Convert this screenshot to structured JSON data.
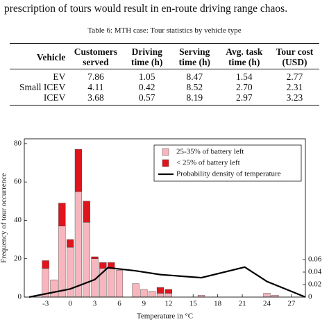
{
  "text_line": "prescription of tours would result in en-route driving range chaos.",
  "table": {
    "caption": "Table 6: MTH case: Tour statistics by vehicle type",
    "header": [
      "Vehicle",
      "Customers served",
      "Driving time (h)",
      "Serving time (h)",
      "Avg. task time (h)",
      "Tour cost (USD)"
    ],
    "rows": [
      [
        "EV",
        "7.86",
        "1.05",
        "8.47",
        "1.54",
        "2.77"
      ],
      [
        "Small ICEV",
        "4.11",
        "0.42",
        "8.52",
        "2.70",
        "2.31"
      ],
      [
        "ICEV",
        "3.68",
        "0.57",
        "8.19",
        "2.97",
        "3.23"
      ]
    ]
  },
  "chart_data": {
    "type": "bar",
    "stacked": true,
    "xlabel": "Temperature in °C",
    "ylabel": "Frequency of tour occurrence",
    "x": [
      -3,
      -2,
      -1,
      0,
      1,
      2,
      3,
      4,
      5,
      6,
      8,
      9,
      10,
      11,
      12,
      16,
      24,
      25
    ],
    "bar_width": 1,
    "series": [
      {
        "name": "25-35% of battery left",
        "color": "#f7b6bd",
        "values": [
          15,
          9,
          37,
          26,
          55,
          39,
          20,
          15,
          15,
          14,
          7,
          4,
          3,
          2,
          2,
          1,
          2,
          1
        ]
      },
      {
        "name": "< 25% of battery left",
        "color": "#e0141c",
        "values": [
          4,
          0,
          12,
          4,
          22,
          11,
          1,
          3,
          3,
          0,
          0,
          0,
          0,
          3,
          2,
          0,
          0,
          0
        ]
      },
      {
        "name": "Probability density of temperature",
        "type": "line",
        "color": "#000000",
        "axis": "y2",
        "x": [
          -5,
          0,
          3,
          4.6,
          8,
          11,
          16,
          21.3,
          24,
          28.7
        ],
        "values": [
          0,
          0.013,
          0.028,
          0.047,
          0.042,
          0.036,
          0.031,
          0.048,
          0.025,
          0
        ]
      }
    ],
    "xlim": [
      -5.6,
      28.7
    ],
    "xticks": [
      -3,
      0,
      3,
      6,
      9,
      12,
      15,
      18,
      21,
      24,
      27
    ],
    "ylim": [
      0,
      82.5
    ],
    "yticks": [
      0,
      20,
      40,
      60,
      80
    ],
    "y2lim": [
      0,
      0.2533
    ],
    "y2ticks": [
      0,
      0.02,
      0.04,
      0.06
    ],
    "legend": "top-right"
  }
}
